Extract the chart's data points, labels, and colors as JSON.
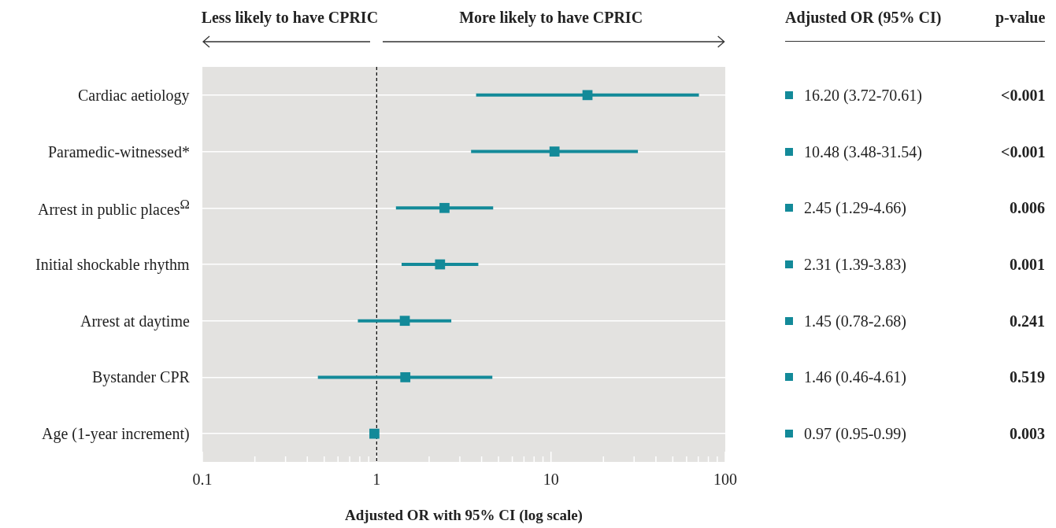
{
  "chart_data": {
    "type": "scatter",
    "xlabel": "Adjusted OR with 95% CI (log scale)",
    "categories": [
      "Cardiac aetiology",
      "Paramedic-witnessed*",
      "Arrest in public places$^{Ω}$",
      "Initial shockable rhythm",
      "Arrest at daytime",
      "Bystander CPR",
      "Age (1-year increment)"
    ],
    "values": [
      16.2,
      10.48,
      2.45,
      2.31,
      1.45,
      1.46,
      0.97
    ],
    "errors": [
      [
        3.72,
        70.61
      ],
      [
        3.48,
        31.54
      ],
      [
        1.29,
        4.66
      ],
      [
        1.39,
        3.83
      ],
      [
        0.78,
        2.68
      ],
      [
        0.46,
        4.61
      ],
      [
        0.95,
        0.99
      ]
    ],
    "color": "#138a99",
    "marker": "square",
    "orientation": "horizontal",
    "log": "x",
    "xlim": [
      0.1,
      100
    ],
    "xticks": [
      0.1,
      {
        "value": 0.2,
        "label": null
      },
      {
        "value": 0.3,
        "label": null
      },
      {
        "value": 0.4,
        "label": null
      },
      {
        "value": 0.5,
        "label": null
      },
      {
        "value": 0.6,
        "label": null
      },
      {
        "value": 0.7,
        "label": null
      },
      {
        "value": 0.8,
        "label": null
      },
      {
        "value": 0.9,
        "label": null
      },
      1,
      {
        "value": 2,
        "label": null
      },
      {
        "value": 3,
        "label": null
      },
      {
        "value": 4,
        "label": null
      },
      {
        "value": 5,
        "label": null
      },
      {
        "value": 6,
        "label": null
      },
      {
        "value": 7,
        "label": null
      },
      {
        "value": 8,
        "label": null
      },
      {
        "value": 9,
        "label": null
      },
      10,
      {
        "value": 20,
        "label": null
      },
      {
        "value": 30,
        "label": null
      },
      {
        "value": 40,
        "label": null
      },
      {
        "value": 50,
        "label": null
      },
      {
        "value": 60,
        "label": null
      },
      {
        "value": 70,
        "label": null
      },
      {
        "value": 80,
        "label": null
      },
      {
        "value": 90,
        "label": null
      },
      100
    ],
    "grid": "y",
    "legend": false,
    "ref_lines": [
      {
        "axis": "x",
        "value": 1,
        "color": "#000000",
        "line_style": "dashed"
      }
    ],
    "annotations": [
      "Less likely to have CPRIC",
      "More likely to have CPRIC",
      "Adjusted OR (95% CI)",
      "p-value",
      "16.20 (3.72-70.61)",
      "10.48 (3.48-31.54)",
      "2.45 (1.29-4.66)",
      "2.31 (1.39-3.83)",
      "1.45 (0.78-2.68)",
      "1.46 (0.46-4.61)",
      "0.97 (0.95-0.99)",
      "<0.001",
      "<0.001",
      "0.006",
      "0.001",
      "0.241",
      "0.519",
      "0.003"
    ]
  }
}
